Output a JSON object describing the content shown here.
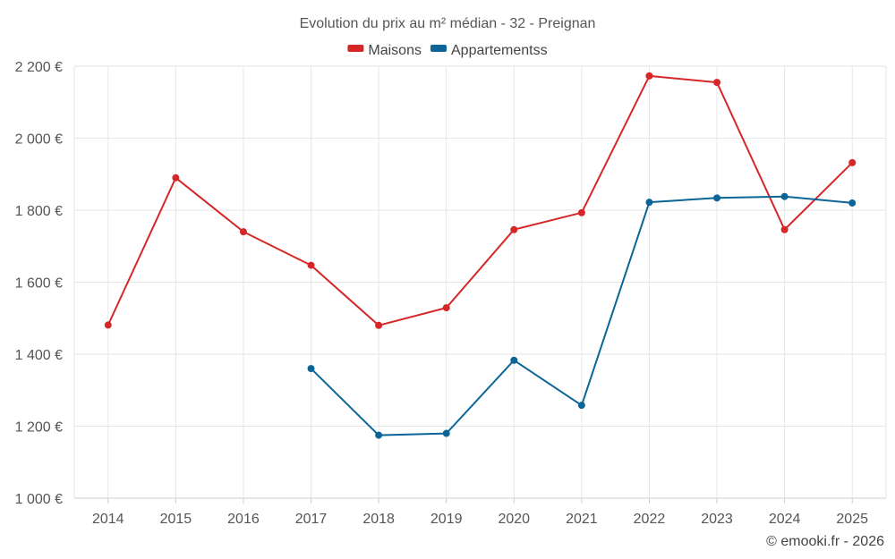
{
  "chart_data": {
    "type": "line",
    "title": "Evolution du prix au m² médian - 32 - Preignan",
    "categories": [
      "2014",
      "2015",
      "2016",
      "2017",
      "2018",
      "2019",
      "2020",
      "2021",
      "2022",
      "2023",
      "2024",
      "2025"
    ],
    "series": [
      {
        "name": "Maisons",
        "color": "#d62728",
        "values": [
          1481,
          1890,
          1740,
          1647,
          1480,
          1529,
          1746,
          1793,
          2173,
          2155,
          1746,
          1932
        ]
      },
      {
        "name": "Appartementss",
        "color": "#0b6597",
        "values": [
          null,
          null,
          null,
          1360,
          1175,
          1180,
          1383,
          1258,
          1822,
          1834,
          1838,
          1820
        ]
      }
    ],
    "y_ticks": [
      "1 000 €",
      "1 200 €",
      "1 400 €",
      "1 600 €",
      "1 800 €",
      "2 000 €",
      "2 200 €"
    ],
    "y_tick_values": [
      1000,
      1200,
      1400,
      1600,
      1800,
      2000,
      2200
    ],
    "ylim": [
      1000,
      2200
    ],
    "legend_position": "top-center",
    "grid": true,
    "xlabel": "",
    "ylabel": ""
  },
  "credit": "© emooki.fr - 2026"
}
